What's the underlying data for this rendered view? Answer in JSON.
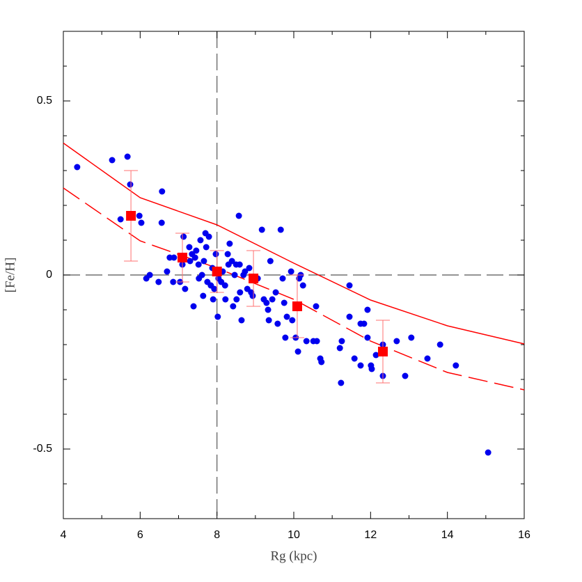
{
  "chart_data": {
    "type": "scatter",
    "x_label": "Rg (kpc)",
    "y_label": "[Fe/H]",
    "xlim": [
      4,
      16
    ],
    "ylim": [
      -0.7,
      0.7
    ],
    "xticks": [
      4,
      6,
      8,
      10,
      12,
      14,
      16
    ],
    "xminorticks": [
      5,
      7,
      9,
      11,
      13,
      15
    ],
    "yticks": [
      -0.5,
      0,
      0.5
    ],
    "yminorticks": [
      -0.6,
      -0.4,
      -0.3,
      -0.2,
      -0.1,
      0.1,
      0.2,
      0.3,
      0.4,
      0.6
    ],
    "reference_lines": {
      "x": [
        8
      ],
      "y": [
        0
      ],
      "color": "#555555"
    },
    "points": {
      "color": "#0000ee",
      "x": [
        4.36,
        5.27,
        5.67,
        5.74,
        5.49,
        5.98,
        6.03,
        6.57,
        6.56,
        6.16,
        6.25,
        6.48,
        6.7,
        6.77,
        6.88,
        6.86,
        7.04,
        7.13,
        7.1,
        7.17,
        7.28,
        7.3,
        7.35,
        7.39,
        7.43,
        7.46,
        7.52,
        7.53,
        7.57,
        7.61,
        7.64,
        7.66,
        7.72,
        7.7,
        7.79,
        7.75,
        7.84,
        7.88,
        7.93,
        7.9,
        7.97,
        8.04,
        8.02,
        8.11,
        8.15,
        8.21,
        8.22,
        8.28,
        8.3,
        8.33,
        8.39,
        8.42,
        8.46,
        8.5,
        8.51,
        8.57,
        8.59,
        8.6,
        8.64,
        8.69,
        8.73,
        8.79,
        8.84,
        8.89,
        8.93,
        9.06,
        9.17,
        9.22,
        9.29,
        9.33,
        9.35,
        9.39,
        9.44,
        9.53,
        9.58,
        9.66,
        9.71,
        9.75,
        9.78,
        9.82,
        9.93,
        9.96,
        10.05,
        10.14,
        10.11,
        10.18,
        10.24,
        10.33,
        10.51,
        10.58,
        10.6,
        10.69,
        10.72,
        11.23,
        11.25,
        11.2,
        11.45,
        11.45,
        11.58,
        11.74,
        11.74,
        11.83,
        11.92,
        11.92,
        12.01,
        12.03,
        12.14,
        12.32,
        12.32,
        12.68,
        12.9,
        13.06,
        13.48,
        13.81,
        14.22,
        15.06
      ],
      "y": [
        0.31,
        0.33,
        0.34,
        0.26,
        0.16,
        0.17,
        0.15,
        0.24,
        0.15,
        -0.01,
        0.0,
        -0.02,
        0.01,
        0.05,
        0.05,
        -0.02,
        -0.02,
        0.11,
        0.03,
        -0.04,
        0.08,
        0.04,
        0.06,
        -0.09,
        0.05,
        0.07,
        0.03,
        -0.01,
        0.1,
        0.0,
        -0.06,
        0.04,
        0.08,
        0.12,
        0.11,
        -0.02,
        -0.03,
        0.02,
        -0.04,
        -0.07,
        0.06,
        -0.01,
        -0.12,
        -0.02,
        0.01,
        -0.03,
        -0.07,
        0.06,
        0.03,
        0.09,
        0.04,
        -0.09,
        0.0,
        0.03,
        -0.07,
        0.17,
        0.03,
        -0.05,
        -0.13,
        0.0,
        0.01,
        -0.04,
        0.02,
        -0.05,
        -0.06,
        -0.01,
        0.13,
        -0.07,
        -0.08,
        -0.1,
        -0.13,
        0.04,
        -0.07,
        -0.05,
        -0.14,
        0.13,
        -0.01,
        -0.08,
        -0.18,
        -0.12,
        0.01,
        -0.13,
        -0.18,
        -0.01,
        -0.22,
        0.0,
        -0.03,
        -0.19,
        -0.19,
        -0.09,
        -0.19,
        -0.24,
        -0.25,
        -0.31,
        -0.19,
        -0.21,
        -0.03,
        -0.12,
        -0.24,
        -0.26,
        -0.14,
        -0.14,
        -0.1,
        -0.18,
        -0.26,
        -0.27,
        -0.23,
        -0.29,
        -0.2,
        -0.19,
        -0.29,
        -0.18,
        -0.24,
        -0.2,
        -0.26,
        -0.51
      ]
    },
    "mean_points": {
      "color": "#ff0000",
      "error_color": "#ff7070",
      "x": [
        5.76,
        7.1,
        8.0,
        8.95,
        10.09,
        12.32
      ],
      "y": [
        0.17,
        0.05,
        0.01,
        -0.01,
        -0.09,
        -0.22
      ],
      "err": [
        0.13,
        0.07,
        0.06,
        0.08,
        0.09,
        0.09
      ]
    },
    "lines": [
      {
        "color": "#ff0000",
        "dash": "solid",
        "x": [
          4,
          6,
          8,
          10,
          12,
          14,
          16
        ],
        "y": [
          0.379,
          0.222,
          0.144,
          0.034,
          -0.072,
          -0.146,
          -0.198
        ]
      },
      {
        "color": "#ff0000",
        "dash": "dashed",
        "x": [
          4,
          6,
          8,
          10,
          12,
          14,
          16
        ],
        "y": [
          0.25,
          0.098,
          0.02,
          -0.07,
          -0.19,
          -0.28,
          -0.33
        ]
      }
    ]
  }
}
